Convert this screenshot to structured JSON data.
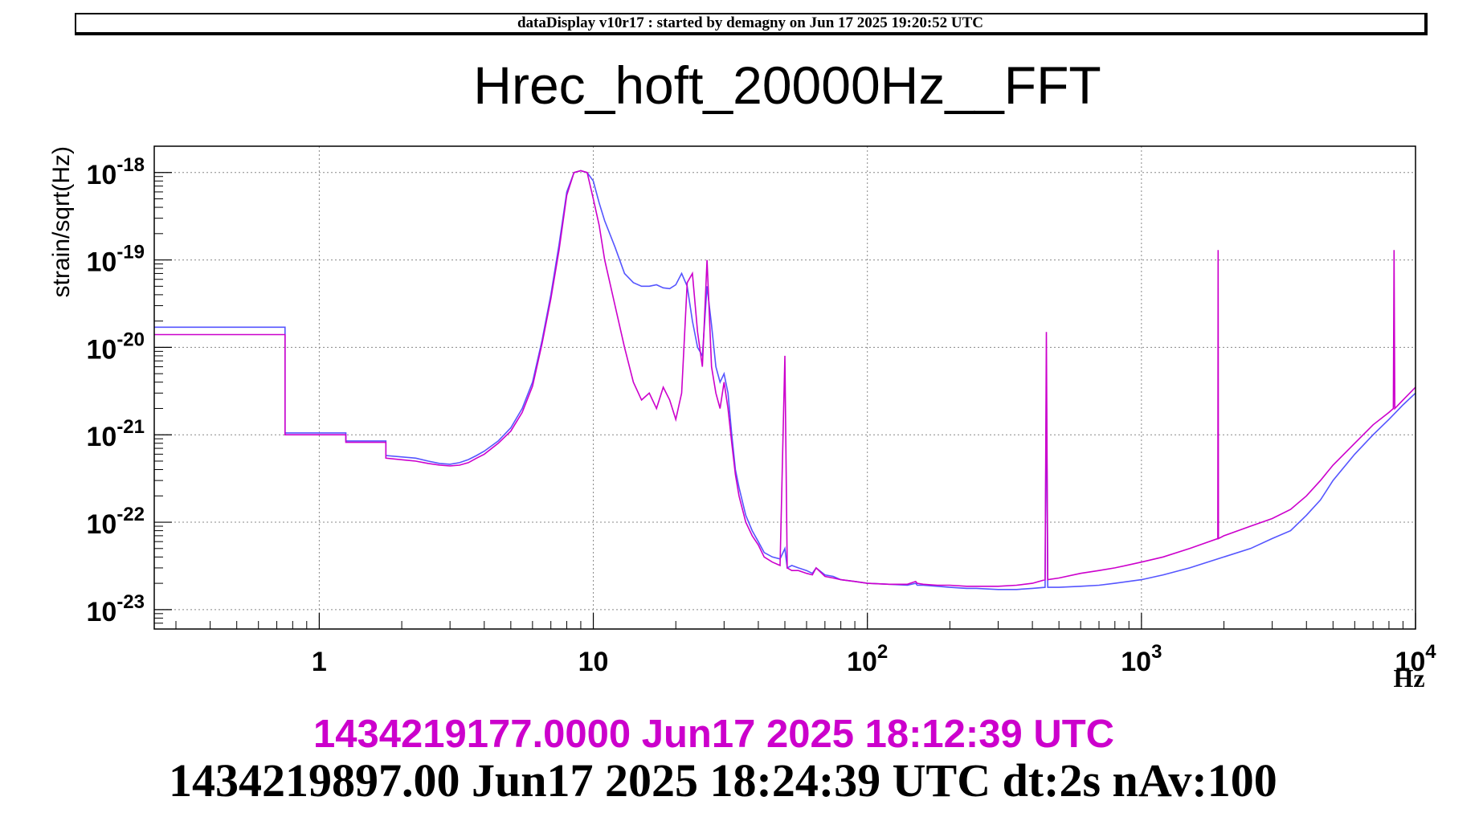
{
  "header": {
    "text": "dataDisplay v10r17 : started by demagny on Jun 17 2025 19:20:52 UTC"
  },
  "title": "Hrec_hoft_20000Hz__FFT",
  "footer": {
    "time_ref": "1434219177.0000 Jun17 2025 18:12:39 UTC",
    "time_main": "1434219897.00 Jun17 2025 18:24:39 UTC dt:2s nAv:100"
  },
  "chart_data": {
    "type": "line",
    "title": "Hrec_hoft_20000Hz__FFT",
    "xlabel": "Hz",
    "ylabel": "strain/sqrt(Hz)",
    "x_scale": "log",
    "y_scale": "log",
    "xlim": [
      0.25,
      10000
    ],
    "ylim": [
      6e-24,
      2e-18
    ],
    "grid": true,
    "x_ticks": [
      {
        "value": 1,
        "base": "1",
        "exp": ""
      },
      {
        "value": 10,
        "base": "10",
        "exp": ""
      },
      {
        "value": 100,
        "base": "10",
        "exp": "2"
      },
      {
        "value": 1000,
        "base": "10",
        "exp": "3"
      },
      {
        "value": 10000,
        "base": "10",
        "exp": "4"
      }
    ],
    "y_ticks": [
      {
        "value": 1e-23,
        "base": "10",
        "exp": "-23"
      },
      {
        "value": 1e-22,
        "base": "10",
        "exp": "-22"
      },
      {
        "value": 1e-21,
        "base": "10",
        "exp": "-21"
      },
      {
        "value": 1e-20,
        "base": "10",
        "exp": "-20"
      },
      {
        "value": 1e-19,
        "base": "10",
        "exp": "-19"
      },
      {
        "value": 1e-18,
        "base": "10",
        "exp": "-18"
      }
    ],
    "series": [
      {
        "color": "#5555ff",
        "x": [
          0.25,
          0.75,
          0.75,
          1.25,
          1.25,
          1.75,
          1.75,
          2.25,
          2.5,
          2.75,
          3.0,
          3.25,
          3.5,
          3.75,
          4.0,
          4.5,
          5.0,
          5.5,
          6.0,
          6.5,
          7.0,
          7.5,
          8.0,
          8.5,
          9.0,
          9.5,
          10.0,
          10.5,
          11.0,
          12.0,
          13.0,
          14.0,
          15.0,
          16.0,
          17.0,
          18.0,
          19.0,
          20.0,
          21.0,
          22.0,
          23.0,
          24.0,
          25.0,
          26.0,
          27.0,
          28.0,
          29.0,
          30.0,
          31.0,
          32.0,
          33.0,
          34.0,
          36.0,
          38.0,
          40.0,
          42.0,
          45.0,
          48.0,
          50.0,
          51.0,
          53.0,
          56.0,
          60.0,
          63.0,
          65.0,
          70.0,
          75.0,
          80.0,
          90.0,
          100.0,
          120.0,
          140.0,
          150.0,
          152.0,
          160.0,
          180.0,
          200.0,
          230.0,
          250.0,
          300.0,
          350.0,
          400.0,
          445.0,
          450.0,
          455.0,
          500.0,
          600.0,
          700.0,
          800.0,
          1000.0,
          1200.0,
          1500.0,
          2000.0,
          2500.0,
          3000.0,
          3500.0,
          4000.0,
          4500.0,
          5000.0,
          6000.0,
          7000.0,
          8000.0,
          9000.0,
          10000.0
        ],
        "y": [
          1.7e-20,
          1.7e-20,
          1.05e-21,
          1.05e-21,
          8.5e-22,
          8.5e-22,
          5.8e-22,
          5.4e-22,
          5e-22,
          4.7e-22,
          4.6e-22,
          4.8e-22,
          5.2e-22,
          5.8e-22,
          6.5e-22,
          8.5e-22,
          1.2e-21,
          2e-21,
          4e-21,
          1.2e-20,
          4e-20,
          1.5e-19,
          6e-19,
          1e-18,
          1.05e-18,
          1e-18,
          8e-19,
          4.5e-19,
          2.8e-19,
          1.4e-19,
          7e-20,
          5.5e-20,
          5e-20,
          5e-20,
          5.2e-20,
          4.8e-20,
          4.7e-20,
          5.2e-20,
          7e-20,
          5e-20,
          2e-20,
          1e-20,
          8e-21,
          5e-20,
          1.8e-20,
          6e-21,
          4e-21,
          5e-21,
          3e-21,
          1e-21,
          4e-22,
          2.5e-22,
          1.2e-22,
          8e-23,
          6e-23,
          4.5e-23,
          4e-23,
          3.8e-23,
          5e-23,
          3e-23,
          3.2e-23,
          3e-23,
          2.8e-23,
          2.6e-23,
          3e-23,
          2.5e-23,
          2.4e-23,
          2.2e-23,
          2.1e-23,
          2e-23,
          1.95e-23,
          1.9e-23,
          2e-23,
          1.9e-23,
          1.9e-23,
          1.85e-23,
          1.8e-23,
          1.75e-23,
          1.75e-23,
          1.7e-23,
          1.7e-23,
          1.75e-23,
          1.8e-23,
          5e-21,
          1.8e-23,
          1.8e-23,
          1.85e-23,
          1.9e-23,
          2e-23,
          2.2e-23,
          2.5e-23,
          3e-23,
          4e-23,
          5e-23,
          6.5e-23,
          8e-23,
          1.2e-22,
          1.8e-22,
          3e-22,
          6e-22,
          1e-21,
          1.5e-21,
          2.2e-21,
          3e-21
        ]
      },
      {
        "color": "#cc00cc",
        "x": [
          0.25,
          0.75,
          0.75,
          1.25,
          1.25,
          1.75,
          1.75,
          2.25,
          2.5,
          2.75,
          3.0,
          3.25,
          3.5,
          3.75,
          4.0,
          4.5,
          5.0,
          5.5,
          6.0,
          6.5,
          7.0,
          7.5,
          8.0,
          8.5,
          9.0,
          9.5,
          10.0,
          10.5,
          11.0,
          12.0,
          13.0,
          14.0,
          15.0,
          16.0,
          17.0,
          18.0,
          19.0,
          20.0,
          21.0,
          22.0,
          23.0,
          24.0,
          25.0,
          26.0,
          27.0,
          28.0,
          29.0,
          30.0,
          31.0,
          32.0,
          33.0,
          34.0,
          36.0,
          38.0,
          40.0,
          42.0,
          45.0,
          48.0,
          50.0,
          51.0,
          53.0,
          56.0,
          60.0,
          63.0,
          65.0,
          70.0,
          75.0,
          80.0,
          90.0,
          100.0,
          120.0,
          140.0,
          150.0,
          152.0,
          160.0,
          180.0,
          200.0,
          230.0,
          250.0,
          300.0,
          350.0,
          400.0,
          445.0,
          450.0,
          455.0,
          500.0,
          600.0,
          700.0,
          800.0,
          1000.0,
          1200.0,
          1500.0,
          1900.0,
          1905.0,
          1910.0,
          2000.0,
          2500.0,
          3000.0,
          3500.0,
          4000.0,
          4500.0,
          5000.0,
          6000.0,
          7000.0,
          8000.0,
          8300.0,
          8350.0,
          8400.0,
          9000.0,
          10000.0
        ],
        "y": [
          1.4e-20,
          1.4e-20,
          1e-21,
          1e-21,
          8.2e-22,
          8.2e-22,
          5.4e-22,
          5e-22,
          4.7e-22,
          4.5e-22,
          4.4e-22,
          4.5e-22,
          4.8e-22,
          5.4e-22,
          6e-22,
          8e-22,
          1.1e-21,
          1.8e-21,
          3.6e-21,
          1.1e-20,
          3.6e-20,
          1.3e-19,
          5.5e-19,
          1e-18,
          1.05e-18,
          1e-18,
          5e-19,
          2.5e-19,
          1e-19,
          3e-20,
          1e-20,
          4e-21,
          2.5e-21,
          3e-21,
          2e-21,
          3.5e-21,
          2.5e-21,
          1.5e-21,
          3e-21,
          5.5e-20,
          7e-20,
          1.5e-20,
          6e-21,
          1e-19,
          6e-21,
          3e-21,
          2e-21,
          4e-21,
          2e-21,
          8e-22,
          3.5e-22,
          2e-22,
          1e-22,
          7e-23,
          5.5e-23,
          4e-23,
          3.5e-23,
          3.2e-23,
          8e-21,
          3e-23,
          2.8e-23,
          2.8e-23,
          2.6e-23,
          2.5e-23,
          3e-23,
          2.4e-23,
          2.3e-23,
          2.2e-23,
          2.1e-23,
          2e-23,
          1.95e-23,
          1.95e-23,
          2.1e-23,
          2e-23,
          1.95e-23,
          1.9e-23,
          1.9e-23,
          1.85e-23,
          1.85e-23,
          1.85e-23,
          1.9e-23,
          2e-23,
          2.2e-23,
          1.5e-20,
          2.2e-23,
          2.3e-23,
          2.6e-23,
          2.8e-23,
          3e-23,
          3.5e-23,
          4e-23,
          5e-23,
          6.5e-23,
          1.3e-19,
          6.5e-23,
          7e-23,
          9e-23,
          1.1e-22,
          1.4e-22,
          2e-22,
          3e-22,
          4.5e-22,
          8e-22,
          1.3e-21,
          1.8e-21,
          2e-21,
          1.3e-19,
          2e-21,
          2.5e-21,
          3.5e-21
        ]
      }
    ]
  }
}
